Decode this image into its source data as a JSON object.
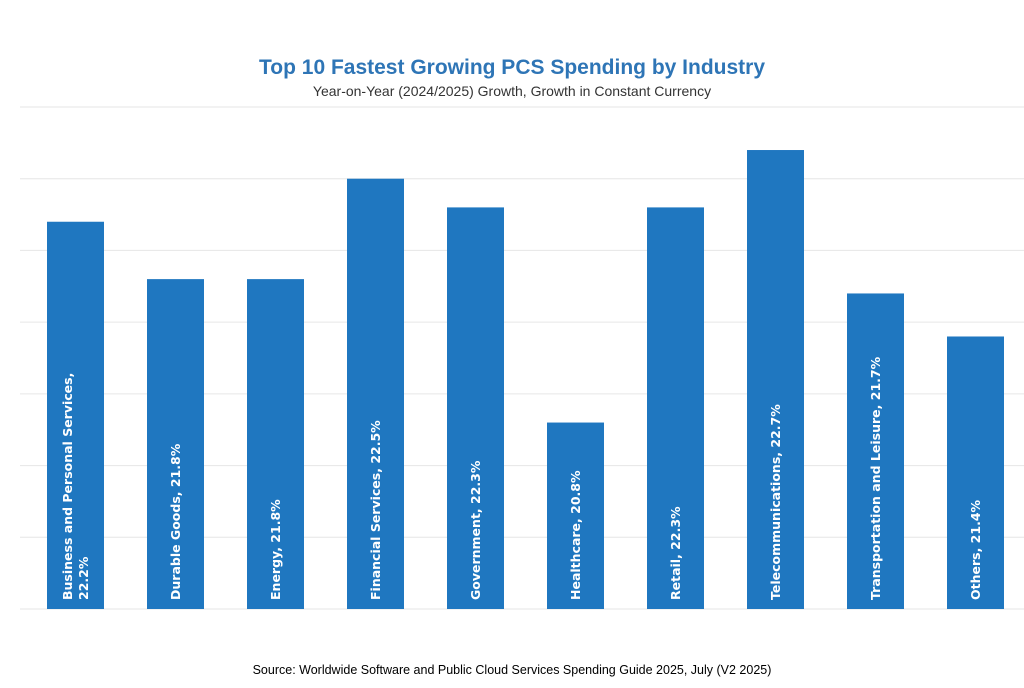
{
  "title": "Top 10 Fastest Growing PCS Spending by Industry",
  "subtitle": "Year-on-Year (2024/2025) Growth, Growth in Constant Currency",
  "source": "Source: Worldwide Software and Public Cloud Services Spending Guide 2025, July (V2 2025)",
  "colors": {
    "bar": "#1f77c0",
    "title": "#2e75b6",
    "grid": "#e6e6e6"
  },
  "chart_data": {
    "type": "bar",
    "title": "Top 10 Fastest Growing PCS Spending by Industry",
    "subtitle": "Year-on-Year (2024/2025) Growth, Growth in Constant Currency",
    "categories": [
      "Business and Personal Services",
      "Durable Goods",
      "Energy",
      "Financial Services",
      "Government",
      "Healthcare",
      "Retail",
      "Telecommunications",
      "Transportation and Leisure",
      "Others"
    ],
    "values": [
      22.2,
      21.8,
      21.8,
      22.5,
      22.3,
      20.8,
      22.3,
      22.7,
      21.7,
      21.4
    ],
    "labels": [
      [
        "Business and Personal Services,",
        "22.2%"
      ],
      [
        "Durable Goods, 21.8%"
      ],
      [
        "Energy, 21.8%"
      ],
      [
        "Financial Services, 22.5%"
      ],
      [
        "Government, 22.3%"
      ],
      [
        "Healthcare, 20.8%"
      ],
      [
        "Retail, 22.3%"
      ],
      [
        "Telecommunications, 22.7%"
      ],
      [
        "Transportation and Leisure, 21.7%"
      ],
      [
        "Others, 21.4%"
      ]
    ],
    "unit": "%",
    "ylim": [
      19.5,
      23.0
    ],
    "grid": true,
    "legend": "none",
    "axis_labels_visible": false
  }
}
